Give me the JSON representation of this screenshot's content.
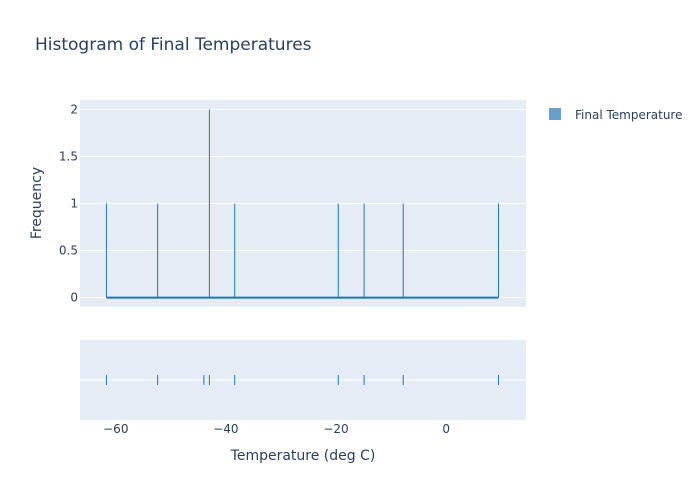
{
  "chart_data": {
    "type": "histogram",
    "title": "Histogram of Final Temperatures",
    "xlabel": "Temperature (deg C)",
    "ylabel": "Frequency",
    "xlim": [
      -66.5,
      14.5
    ],
    "ylim": [
      -0.1,
      2.1
    ],
    "x_ticks": [
      -60,
      -40,
      -20,
      0
    ],
    "x_tick_labels": [
      "−60",
      "−40",
      "−20",
      "0"
    ],
    "y_ticks": [
      0,
      0.5,
      1,
      1.5,
      2
    ],
    "y_tick_labels": [
      "0",
      "0.5",
      "1",
      "1.5",
      "2"
    ],
    "legend_position": "top-right",
    "series": [
      {
        "name": "Final Temperature",
        "color": "#1f77b4",
        "legend_color": "#6a9fcc",
        "bins": [
          {
            "x": -61.7,
            "count": 1
          },
          {
            "x": -52.4,
            "count": 1
          },
          {
            "x": -43.0,
            "count": 2
          },
          {
            "x": -38.4,
            "count": 1
          },
          {
            "x": -19.6,
            "count": 1
          },
          {
            "x": -14.9,
            "count": 1
          },
          {
            "x": -7.8,
            "count": 1
          },
          {
            "x": 9.5,
            "count": 1
          }
        ],
        "rug_points": [
          -61.7,
          -52.4,
          -44.0,
          -43.0,
          -38.4,
          -19.6,
          -14.9,
          -7.8,
          9.5
        ]
      }
    ]
  }
}
